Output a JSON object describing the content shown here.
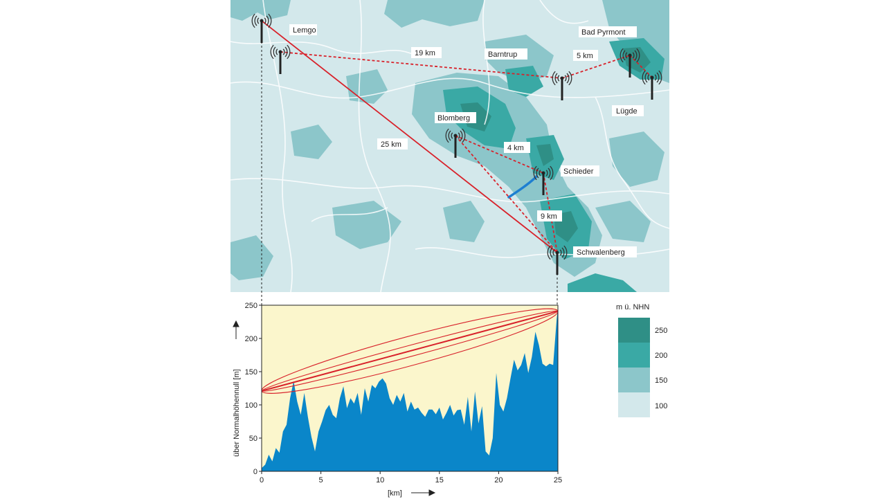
{
  "map": {
    "stations": [
      {
        "name": "Lemgo"
      },
      {
        "name": "Barntrup"
      },
      {
        "name": "Bad Pyrmont"
      },
      {
        "name": "Lügde"
      },
      {
        "name": "Blomberg"
      },
      {
        "name": "Schieder"
      },
      {
        "name": "Schwalenberg"
      }
    ],
    "links": [
      {
        "label": "19 km",
        "style": "dashed"
      },
      {
        "label": "5 km",
        "style": "dashed"
      },
      {
        "label": "25 km",
        "style": "solid"
      },
      {
        "label": "4 km",
        "style": "dashed"
      },
      {
        "label": "9 km",
        "style": "dashed"
      }
    ],
    "colors": {
      "base": "#d3e8eb",
      "link": "#d8212a",
      "river": "#1e7fd1",
      "road": "#ffffff"
    }
  },
  "legend": {
    "title": "m ü. NHN",
    "items": [
      {
        "label": "250",
        "color": "#2f8f86"
      },
      {
        "label": "200",
        "color": "#3aa9a5"
      },
      {
        "label": "150",
        "color": "#8cc6ca"
      },
      {
        "label": "100",
        "color": "#d3e8eb"
      }
    ]
  },
  "chart_data": {
    "type": "area",
    "xlabel": "[km]",
    "ylabel": "über Normalhöhennull [m]",
    "xlim": [
      0,
      25
    ],
    "ylim": [
      0,
      250
    ],
    "xticks": [
      "0",
      "5",
      "10",
      "15",
      "20",
      "25"
    ],
    "yticks": [
      "0",
      "50",
      "100",
      "150",
      "200",
      "250"
    ],
    "colors": {
      "fill": "#0a86c9",
      "background": "#fbf6cc",
      "link": "#d8212a"
    },
    "link_line": {
      "x": [
        0,
        25
      ],
      "y": [
        121,
        241
      ]
    },
    "profile": {
      "x": [
        0,
        0.3,
        0.6,
        0.9,
        1.2,
        1.5,
        1.8,
        2.1,
        2.4,
        2.7,
        3.0,
        3.3,
        3.6,
        3.9,
        4.2,
        4.5,
        4.8,
        5.1,
        5.4,
        5.7,
        6.0,
        6.3,
        6.6,
        6.9,
        7.2,
        7.5,
        7.8,
        8.1,
        8.4,
        8.7,
        9.0,
        9.3,
        9.6,
        9.9,
        10.2,
        10.5,
        10.8,
        11.1,
        11.4,
        11.7,
        12.0,
        12.3,
        12.6,
        12.9,
        13.2,
        13.5,
        13.8,
        14.1,
        14.4,
        14.7,
        15.0,
        15.3,
        15.6,
        15.9,
        16.2,
        16.5,
        16.8,
        17.1,
        17.4,
        17.7,
        18.0,
        18.3,
        18.6,
        18.9,
        19.2,
        19.5,
        19.8,
        20.1,
        20.4,
        20.7,
        21.0,
        21.3,
        21.6,
        21.9,
        22.2,
        22.5,
        22.8,
        23.1,
        23.4,
        23.7,
        24.0,
        24.3,
        24.6,
        24.9,
        25.0
      ],
      "y": [
        5,
        10,
        25,
        15,
        35,
        28,
        60,
        70,
        110,
        136,
        105,
        85,
        118,
        82,
        52,
        30,
        60,
        75,
        92,
        100,
        85,
        80,
        110,
        128,
        95,
        110,
        102,
        118,
        85,
        125,
        105,
        130,
        125,
        135,
        140,
        132,
        110,
        100,
        115,
        105,
        118,
        90,
        105,
        93,
        96,
        88,
        82,
        93,
        93,
        86,
        96,
        78,
        88,
        100,
        84,
        92,
        93,
        70,
        112,
        60,
        120,
        72,
        98,
        30,
        24,
        50,
        148,
        100,
        90,
        110,
        140,
        168,
        152,
        160,
        178,
        148,
        172,
        210,
        190,
        162,
        158,
        162,
        160,
        230,
        245
      ]
    }
  }
}
